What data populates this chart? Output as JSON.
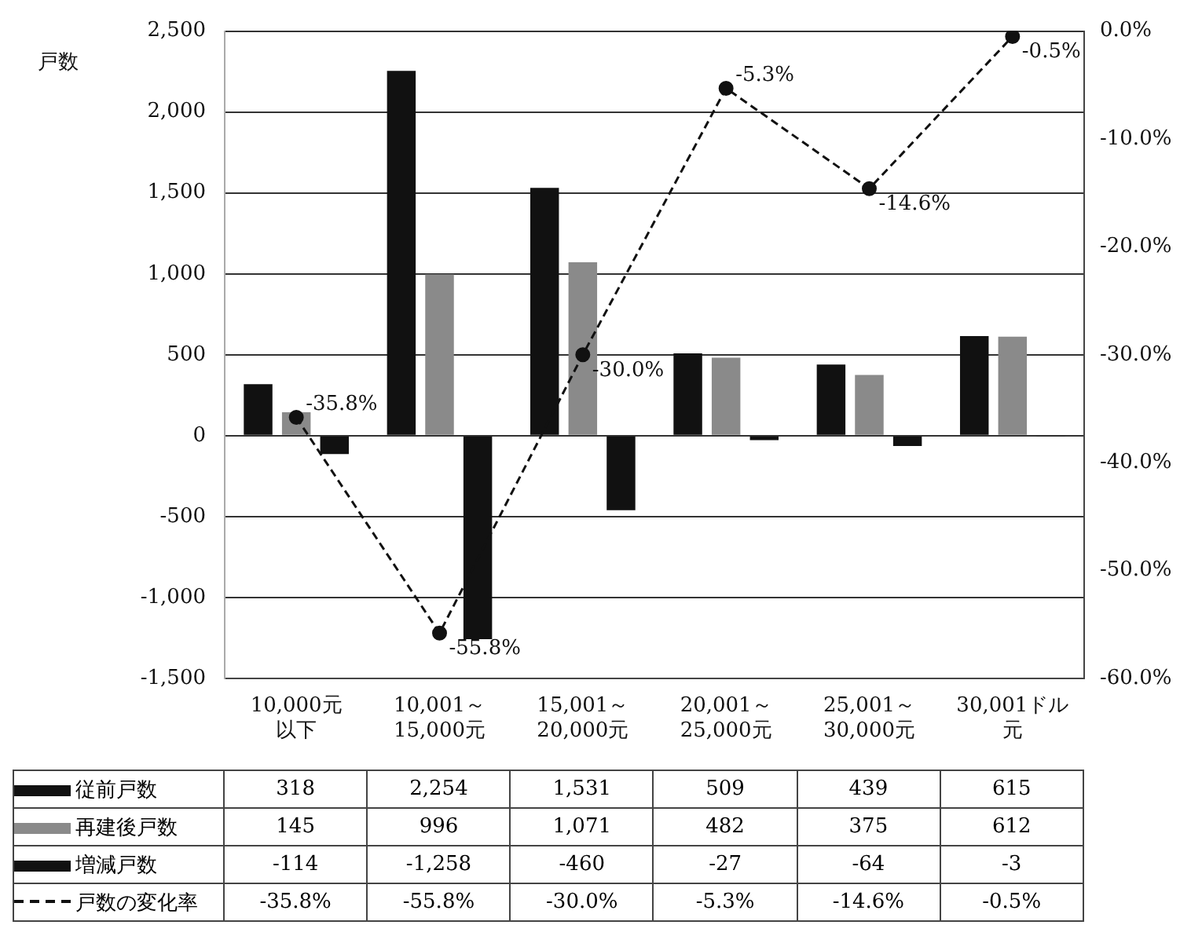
{
  "chart_data": {
    "type": "bar",
    "ylabel": "戸数",
    "categories": [
      "10,000元以下",
      "10,001～15,000元",
      "15,001～20,000元",
      "20,001～25,000元",
      "25,001～30,000元",
      "30,001ドル元"
    ],
    "series": [
      {
        "name": "従前戸数",
        "color": "#111111",
        "values": [
          318,
          2254,
          1531,
          509,
          439,
          615
        ],
        "value_labels": [
          "318",
          "2,254",
          "1,531",
          "509",
          "439",
          "615"
        ]
      },
      {
        "name": "再建後戸数",
        "color": "#8a8a8a",
        "values": [
          145,
          996,
          1071,
          482,
          375,
          612
        ],
        "value_labels": [
          "145",
          "996",
          "1,071",
          "482",
          "375",
          "612"
        ]
      },
      {
        "name": "増減戸数",
        "color": "#111111",
        "values": [
          -114,
          -1258,
          -460,
          -27,
          -64,
          -3
        ],
        "value_labels": [
          "-114",
          "-1,258",
          "-460",
          "-27",
          "-64",
          "-3"
        ]
      },
      {
        "name": "戸数の変化率",
        "type": "line",
        "axis": "y2",
        "color": "#111111",
        "line_style": "dashed",
        "marker": "circle",
        "values": [
          -35.8,
          -55.8,
          -30.0,
          -5.3,
          -14.6,
          -0.5
        ],
        "value_labels": [
          "-35.8%",
          "-55.8%",
          "-30.0%",
          "-5.3%",
          "-14.6%",
          "-0.5%"
        ]
      }
    ],
    "ylim": [
      -1500,
      2500
    ],
    "yticks": [
      {
        "value": -1500,
        "label": "-1,500"
      },
      {
        "value": -1000,
        "label": "-1,000"
      },
      {
        "value": -500,
        "label": "-500"
      },
      0,
      500,
      {
        "value": 1000,
        "label": "1,000"
      },
      {
        "value": 1500,
        "label": "1,500"
      },
      {
        "value": 2000,
        "label": "2,000"
      },
      {
        "value": 2500,
        "label": "2,500"
      }
    ],
    "y2lim": [
      -60,
      0
    ],
    "y2ticks": [
      {
        "value": -60,
        "label": "-60.0%"
      },
      {
        "value": -50,
        "label": "-50.0%"
      },
      {
        "value": -40,
        "label": "-40.0%"
      },
      {
        "value": -30,
        "label": "-30.0%"
      },
      {
        "value": -20,
        "label": "-20.0%"
      },
      {
        "value": -10,
        "label": "-10.0%"
      },
      {
        "value": 0,
        "label": "0.0%"
      }
    ],
    "grid": "y",
    "legend": "bottom"
  }
}
